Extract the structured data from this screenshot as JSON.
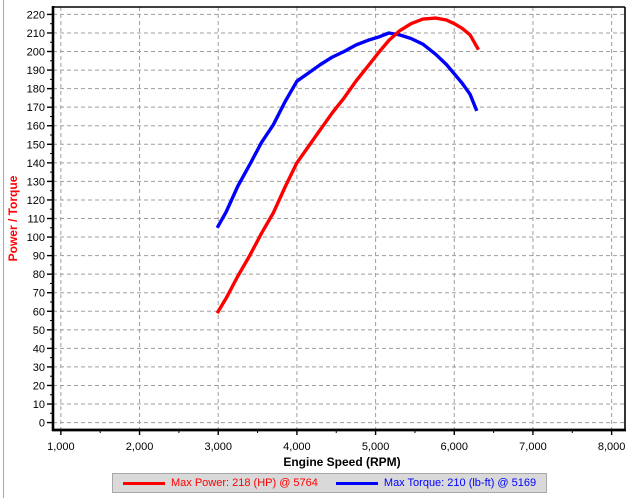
{
  "panel": {
    "background": "#ffffff",
    "edge_color": "#a9a9a9"
  },
  "chart_data": {
    "type": "line",
    "title": "",
    "xlabel": "Engine Speed (RPM)",
    "ylabel": "Power / Torque",
    "ylabel_color": "#ff0000",
    "xlabel_color": "#000000",
    "grid": "dashed",
    "grid_color": "#9f9f9f",
    "legend_position": "bottom",
    "xlim": [
      900,
      8170
    ],
    "ylim": [
      -4,
      224
    ],
    "x_ticks": [
      1000,
      2000,
      3000,
      4000,
      5000,
      6000,
      7000,
      8000
    ],
    "x_tick_labels": [
      "1,000",
      "2,000",
      "3,000",
      "4,000",
      "5,000",
      "6,000",
      "7,000",
      "8,000"
    ],
    "x_minor_ticks": [
      1500,
      2500,
      3500,
      4500,
      5500,
      6500,
      7500
    ],
    "y_ticks": [
      0,
      10,
      20,
      30,
      40,
      50,
      60,
      70,
      80,
      90,
      100,
      110,
      120,
      130,
      140,
      150,
      160,
      170,
      180,
      190,
      200,
      210,
      220
    ],
    "max_power": {
      "value": 218,
      "unit": "HP",
      "rpm": 5764
    },
    "max_torque": {
      "value": 210,
      "unit": "lb-ft",
      "rpm": 5169
    },
    "series": [
      {
        "id": "torque-curve",
        "name": "Max Torque: 210 (lb-ft) @ 5169",
        "color": "#0000ff",
        "x": [
          2987,
          3100,
          3250,
          3400,
          3550,
          3700,
          3850,
          4000,
          4150,
          4300,
          4450,
          4600,
          4750,
          4900,
          5050,
          5169,
          5300,
          5450,
          5600,
          5764,
          5900,
          6000,
          6100,
          6200,
          6287
        ],
        "y": [
          105,
          113.5,
          127.5,
          139,
          151,
          160.5,
          173,
          184,
          188.5,
          193,
          197,
          200,
          203.5,
          206,
          208,
          210,
          209,
          207,
          204,
          198.5,
          193,
          188,
          183,
          177,
          168
        ]
      },
      {
        "id": "power-curve",
        "name": "Max Power: 218 (HP) @ 5764",
        "color": "#ff0000",
        "x": [
          2987,
          3100,
          3250,
          3400,
          3550,
          3700,
          3850,
          4000,
          4150,
          4300,
          4450,
          4600,
          4750,
          4900,
          5050,
          5169,
          5300,
          5450,
          5600,
          5764,
          5900,
          6000,
          6100,
          6200,
          6308
        ],
        "y": [
          59,
          67,
          79,
          90,
          102,
          113,
          127,
          140,
          149,
          158,
          167,
          175,
          184,
          192,
          200,
          206,
          211,
          215,
          217.5,
          218,
          217,
          215,
          212.5,
          209,
          201
        ]
      }
    ]
  },
  "legend": {
    "power_label": "Max Power: 218 (HP) @ 5764",
    "torque_label": "Max Torque: 210 (lb-ft) @ 5169"
  }
}
